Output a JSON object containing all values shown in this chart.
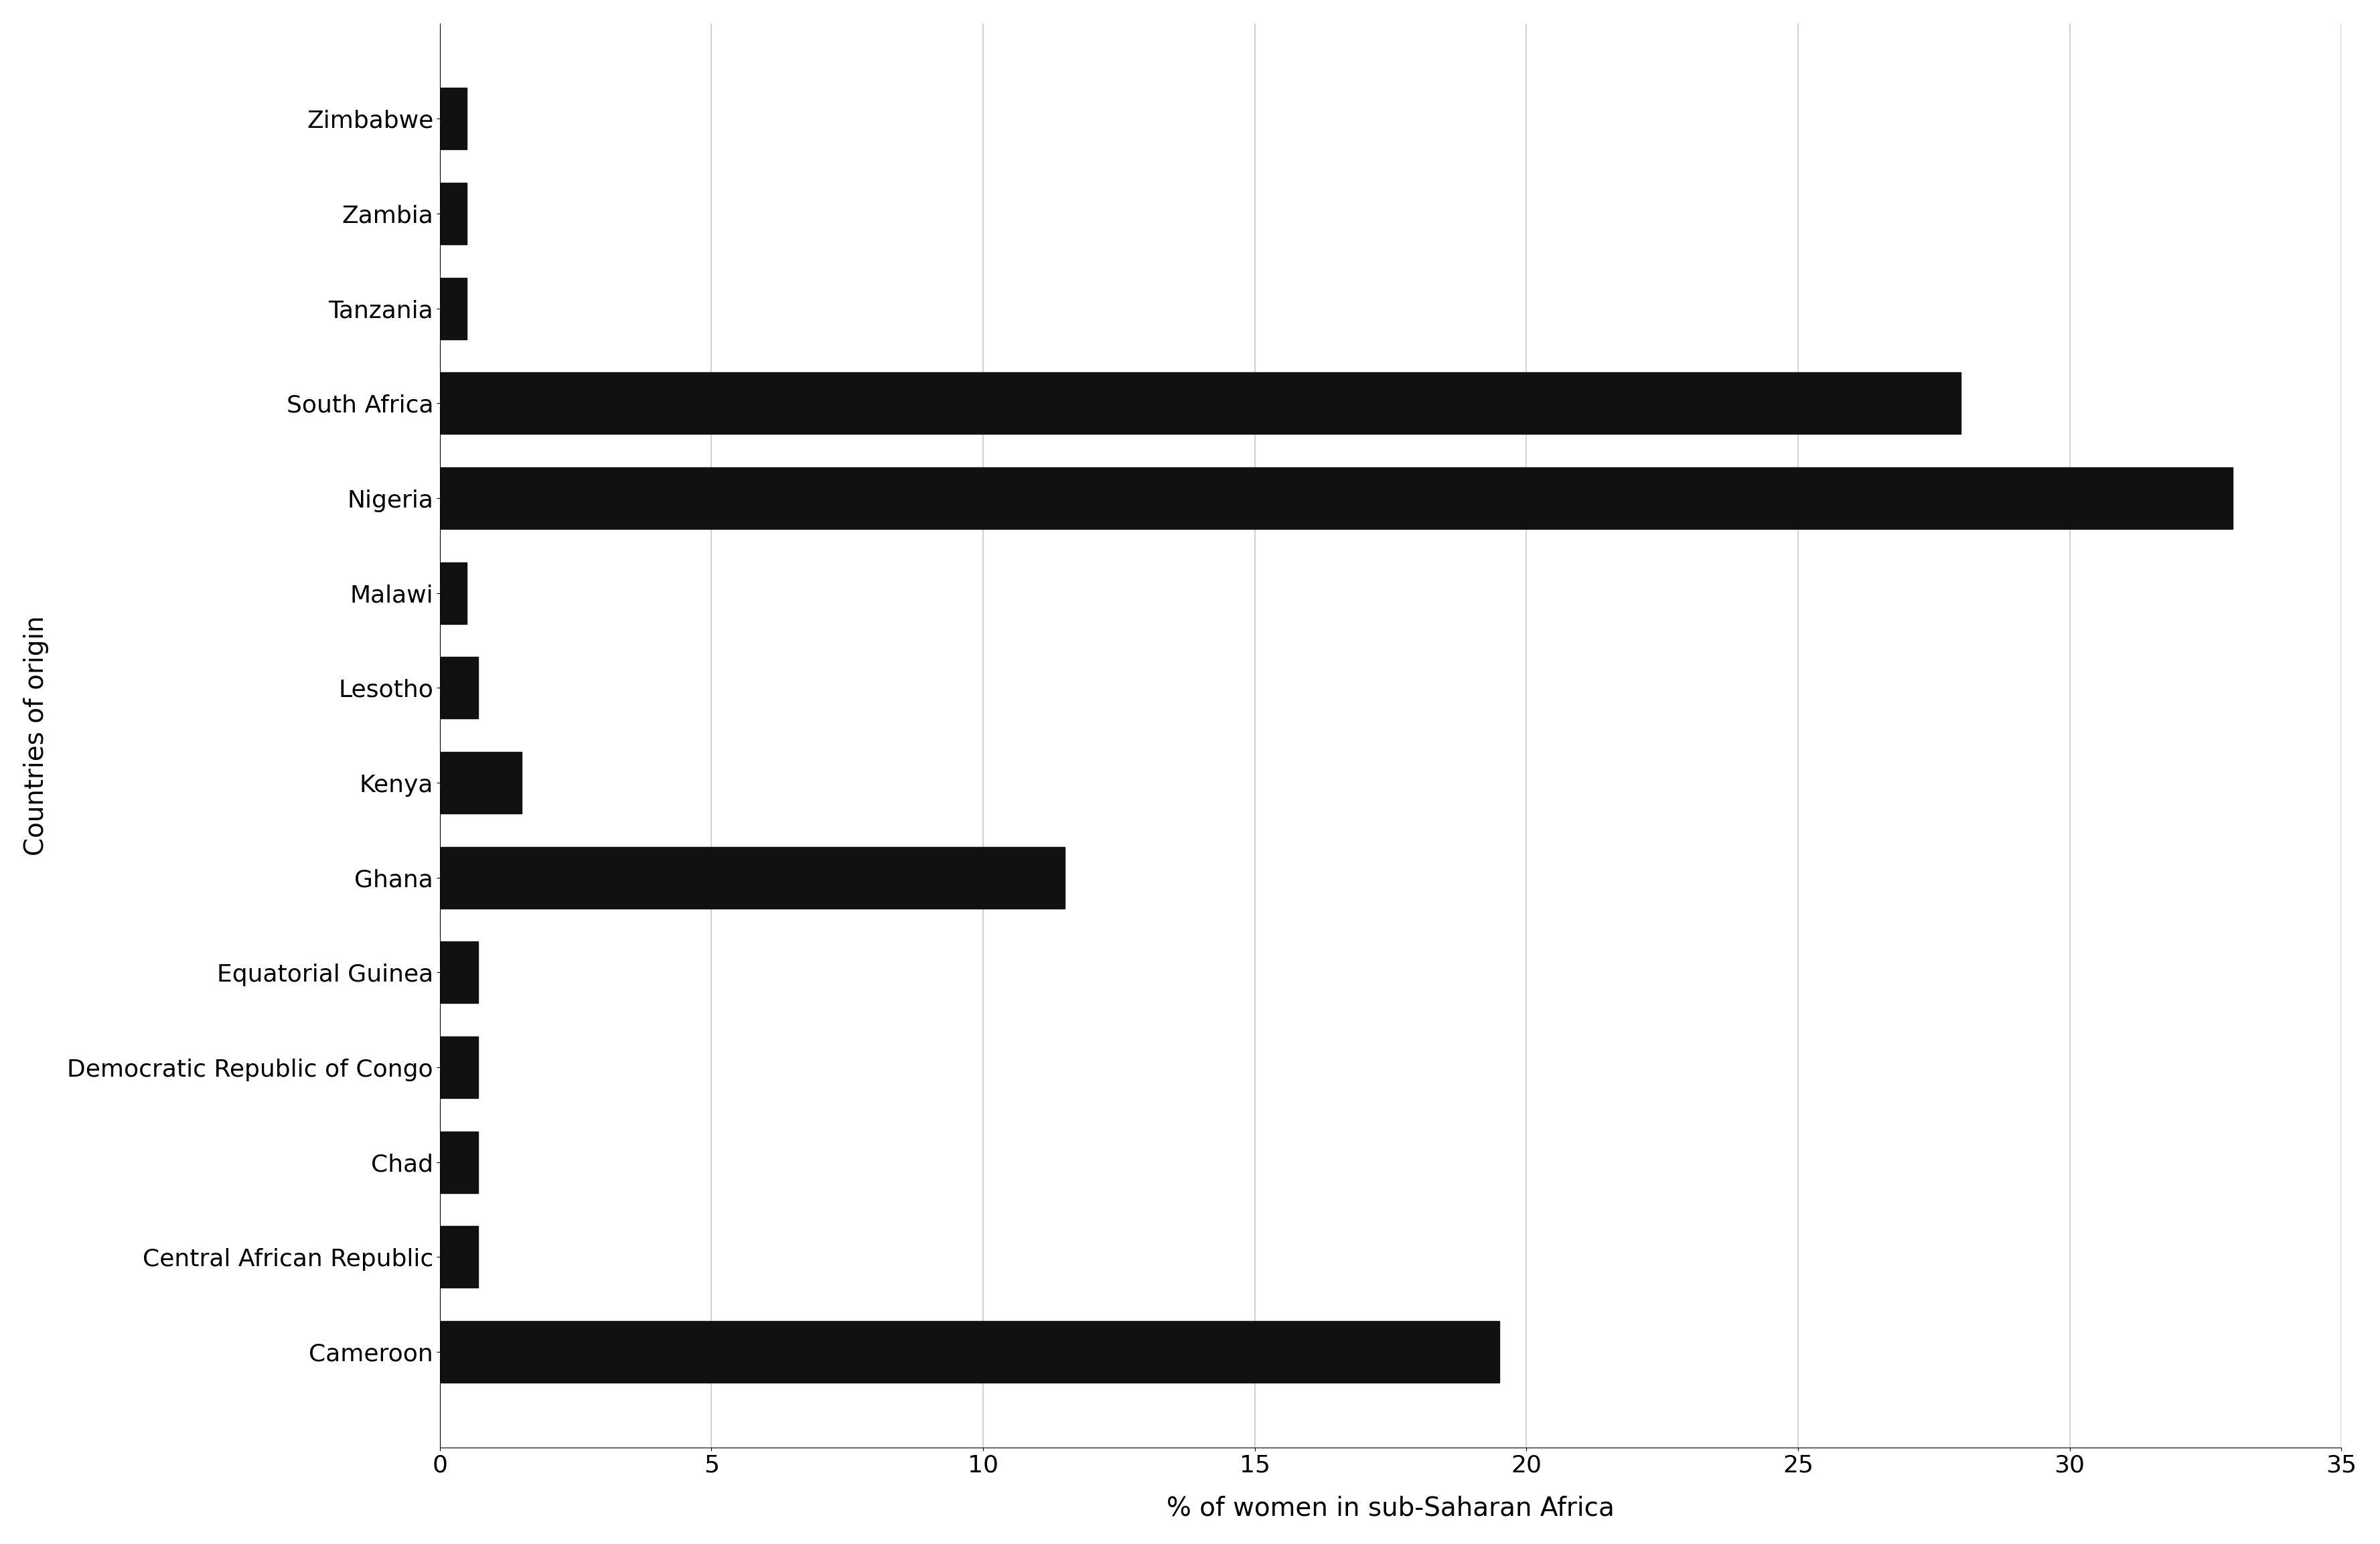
{
  "categories": [
    "Zimbabwe",
    "Zambia",
    "Tanzania",
    "South Africa",
    "Nigeria",
    "Malawi",
    "Lesotho",
    "Kenya",
    "Ghana",
    "Equatorial Guinea",
    "Democratic Republic of Congo",
    "Chad",
    "Central African Republic",
    "Cameroon"
  ],
  "values": [
    0.5,
    0.5,
    0.5,
    28.0,
    33.0,
    0.5,
    0.7,
    1.5,
    11.5,
    0.7,
    0.7,
    0.7,
    0.7,
    19.5
  ],
  "bar_color": "#111111",
  "xlabel": "% of women in sub-Saharan Africa",
  "ylabel": "Countries of origin",
  "xlim": [
    0,
    35
  ],
  "xticks": [
    0,
    5,
    10,
    15,
    20,
    25,
    30,
    35
  ],
  "background_color": "#ffffff",
  "grid_color": "#cccccc",
  "label_fontsize": 28,
  "tick_fontsize": 26,
  "bar_height": 0.65
}
